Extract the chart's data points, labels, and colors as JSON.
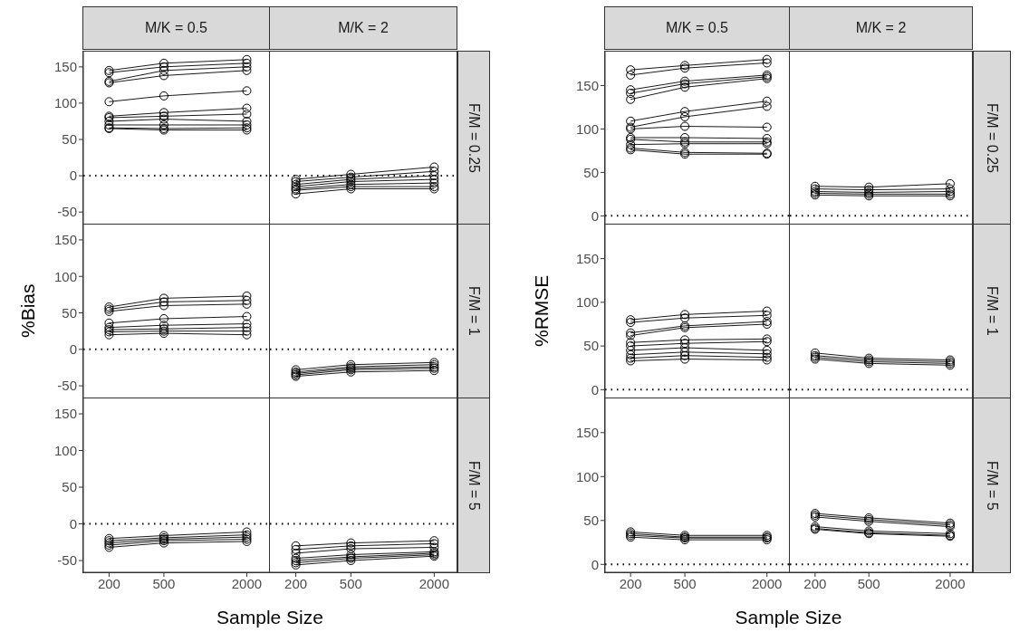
{
  "chart_data": [
    {
      "type": "line",
      "title": "M/K = 0.5",
      "x": [
        200,
        500,
        2000
      ],
      "log": "x",
      "xlim": [
        130,
        2900
      ],
      "xticks": [
        200,
        500,
        2000
      ],
      "ylim": [
        -66,
        171
      ],
      "yticks": [
        -50,
        0,
        50,
        100,
        150
      ],
      "tick_labels": "y",
      "marker": "circle",
      "line_style": "solid",
      "grid": false,
      "ref_lines": [
        {
          "axis": "y",
          "value": 0,
          "line_style": "dotted",
          "color": "#000000"
        }
      ],
      "series": [
        {
          "color": "#000000",
          "values": [
            145,
            155,
            160
          ]
        },
        {
          "color": "#000000",
          "values": [
            142,
            150,
            155
          ]
        },
        {
          "color": "#000000",
          "values": [
            130,
            145,
            150
          ]
        },
        {
          "color": "#000000",
          "values": [
            128,
            138,
            145
          ]
        },
        {
          "color": "#000000",
          "values": [
            102,
            110,
            117
          ]
        },
        {
          "color": "#000000",
          "values": [
            82,
            87,
            93
          ]
        },
        {
          "color": "#000000",
          "values": [
            80,
            82,
            85
          ]
        },
        {
          "color": "#000000",
          "values": [
            75,
            78,
            75
          ]
        },
        {
          "color": "#000000",
          "values": [
            70,
            70,
            70
          ]
        },
        {
          "color": "#000000",
          "values": [
            66,
            65,
            66
          ]
        },
        {
          "color": "#000000",
          "values": [
            65,
            63,
            63
          ]
        }
      ]
    },
    {
      "type": "line",
      "title": "M/K = 2",
      "y2label": "F/M = 0.25",
      "x": [
        200,
        500,
        2000
      ],
      "log": "x",
      "xlim": [
        130,
        2900
      ],
      "xticks": [
        200,
        500,
        2000
      ],
      "ylim": [
        -66,
        171
      ],
      "yticks": [
        -50,
        0,
        50,
        100,
        150
      ],
      "tick_labels": false,
      "marker": "circle",
      "line_style": "solid",
      "grid": false,
      "ref_lines": [
        {
          "axis": "y",
          "value": 0,
          "line_style": "dotted",
          "color": "#000000"
        }
      ],
      "series": [
        {
          "color": "#000000",
          "values": [
            -5,
            2,
            12
          ]
        },
        {
          "color": "#000000",
          "values": [
            -8,
            -2,
            6
          ]
        },
        {
          "color": "#000000",
          "values": [
            -12,
            -5,
            0
          ]
        },
        {
          "color": "#000000",
          "values": [
            -15,
            -8,
            -5
          ]
        },
        {
          "color": "#000000",
          "values": [
            -18,
            -12,
            -10
          ]
        },
        {
          "color": "#000000",
          "values": [
            -20,
            -15,
            -15
          ]
        },
        {
          "color": "#000000",
          "values": [
            -25,
            -18,
            -18
          ]
        }
      ]
    },
    {
      "type": "line",
      "ylabel": "%Bias",
      "x": [
        200,
        500,
        2000
      ],
      "log": "x",
      "xlim": [
        130,
        2900
      ],
      "xticks": [
        200,
        500,
        2000
      ],
      "ylim": [
        -66,
        171
      ],
      "yticks": [
        -50,
        0,
        50,
        100,
        150
      ],
      "tick_labels": "y",
      "marker": "circle",
      "line_style": "solid",
      "grid": false,
      "ref_lines": [
        {
          "axis": "y",
          "value": 0,
          "line_style": "dotted",
          "color": "#000000"
        }
      ],
      "series": [
        {
          "color": "#000000",
          "values": [
            58,
            70,
            73
          ]
        },
        {
          "color": "#000000",
          "values": [
            55,
            65,
            67
          ]
        },
        {
          "color": "#000000",
          "values": [
            52,
            60,
            62
          ]
        },
        {
          "color": "#000000",
          "values": [
            36,
            42,
            45
          ]
        },
        {
          "color": "#000000",
          "values": [
            30,
            33,
            35
          ]
        },
        {
          "color": "#000000",
          "values": [
            27,
            28,
            30
          ]
        },
        {
          "color": "#000000",
          "values": [
            24,
            25,
            25
          ]
        },
        {
          "color": "#000000",
          "values": [
            20,
            22,
            20
          ]
        }
      ]
    },
    {
      "type": "line",
      "y2label": "F/M = 1",
      "x": [
        200,
        500,
        2000
      ],
      "log": "x",
      "xlim": [
        130,
        2900
      ],
      "xticks": [
        200,
        500,
        2000
      ],
      "ylim": [
        -66,
        171
      ],
      "yticks": [
        -50,
        0,
        50,
        100,
        150
      ],
      "tick_labels": false,
      "marker": "circle",
      "line_style": "solid",
      "grid": false,
      "ref_lines": [
        {
          "axis": "y",
          "value": 0,
          "line_style": "dotted",
          "color": "#000000"
        }
      ],
      "series": [
        {
          "color": "#000000",
          "values": [
            -28,
            -21,
            -18
          ]
        },
        {
          "color": "#000000",
          "values": [
            -31,
            -24,
            -21
          ]
        },
        {
          "color": "#000000",
          "values": [
            -33,
            -26,
            -24
          ]
        },
        {
          "color": "#000000",
          "values": [
            -35,
            -28,
            -26
          ]
        },
        {
          "color": "#000000",
          "values": [
            -37,
            -31,
            -29
          ]
        }
      ]
    },
    {
      "type": "line",
      "xlabel": "Sample Size",
      "x": [
        200,
        500,
        2000
      ],
      "log": "x",
      "xlim": [
        130,
        2900
      ],
      "xticks": [
        200,
        500,
        2000
      ],
      "ylim": [
        -66,
        171
      ],
      "yticks": [
        -50,
        0,
        50,
        100,
        150
      ],
      "marker": "circle",
      "line_style": "solid",
      "grid": false,
      "ref_lines": [
        {
          "axis": "y",
          "value": 0,
          "line_style": "dotted",
          "color": "#000000"
        }
      ],
      "series": [
        {
          "color": "#000000",
          "values": [
            -20,
            -16,
            -11
          ]
        },
        {
          "color": "#000000",
          "values": [
            -23,
            -19,
            -15
          ]
        },
        {
          "color": "#000000",
          "values": [
            -26,
            -21,
            -18
          ]
        },
        {
          "color": "#000000",
          "values": [
            -29,
            -23,
            -21
          ]
        },
        {
          "color": "#000000",
          "values": [
            -32,
            -26,
            -24
          ]
        }
      ]
    },
    {
      "type": "line",
      "y2label": "F/M = 5",
      "x": [
        200,
        500,
        2000
      ],
      "log": "x",
      "xlim": [
        130,
        2900
      ],
      "xticks": [
        200,
        500,
        2000
      ],
      "ylim": [
        -66,
        171
      ],
      "yticks": [
        -50,
        0,
        50,
        100,
        150
      ],
      "tick_labels": "x",
      "marker": "circle",
      "line_style": "solid",
      "grid": false,
      "ref_lines": [
        {
          "axis": "y",
          "value": 0,
          "line_style": "dotted",
          "color": "#000000"
        }
      ],
      "series": [
        {
          "color": "#000000",
          "values": [
            -30,
            -26,
            -23
          ]
        },
        {
          "color": "#000000",
          "values": [
            -35,
            -30,
            -27
          ]
        },
        {
          "color": "#000000",
          "values": [
            -40,
            -34,
            -32
          ]
        },
        {
          "color": "#000000",
          "values": [
            -47,
            -42,
            -38
          ]
        },
        {
          "color": "#000000",
          "values": [
            -50,
            -45,
            -40
          ]
        },
        {
          "color": "#000000",
          "values": [
            -53,
            -47,
            -42
          ]
        },
        {
          "color": "#000000",
          "values": [
            -56,
            -50,
            -44
          ]
        }
      ]
    },
    {
      "type": "line",
      "title": "M/K = 0.5",
      "x": [
        200,
        500,
        2000
      ],
      "log": "x",
      "xlim": [
        130,
        2900
      ],
      "xticks": [
        200,
        500,
        2000
      ],
      "ylim": [
        -9,
        189
      ],
      "yticks": [
        0,
        50,
        100,
        150
      ],
      "tick_labels": "y",
      "marker": "circle",
      "line_style": "solid",
      "grid": false,
      "ref_lines": [
        {
          "axis": "y",
          "value": 0,
          "line_style": "dotted",
          "color": "#000000"
        }
      ],
      "series": [
        {
          "color": "#000000",
          "values": [
            168,
            173,
            180
          ]
        },
        {
          "color": "#000000",
          "values": [
            162,
            170,
            176
          ]
        },
        {
          "color": "#000000",
          "values": [
            145,
            155,
            162
          ]
        },
        {
          "color": "#000000",
          "values": [
            141,
            152,
            160
          ]
        },
        {
          "color": "#000000",
          "values": [
            134,
            148,
            158
          ]
        },
        {
          "color": "#000000",
          "values": [
            109,
            120,
            132
          ]
        },
        {
          "color": "#000000",
          "values": [
            102,
            114,
            126
          ]
        },
        {
          "color": "#000000",
          "values": [
            100,
            103,
            102
          ]
        },
        {
          "color": "#000000",
          "values": [
            90,
            90,
            89
          ]
        },
        {
          "color": "#000000",
          "values": [
            88,
            85,
            85
          ]
        },
        {
          "color": "#000000",
          "values": [
            82,
            83,
            83
          ]
        },
        {
          "color": "#000000",
          "values": [
            78,
            73,
            72
          ]
        },
        {
          "color": "#000000",
          "values": [
            76,
            71,
            71
          ]
        }
      ]
    },
    {
      "type": "line",
      "title": "M/K = 2",
      "y2label": "F/M = 0.25",
      "x": [
        200,
        500,
        2000
      ],
      "log": "x",
      "xlim": [
        130,
        2900
      ],
      "xticks": [
        200,
        500,
        2000
      ],
      "ylim": [
        -9,
        189
      ],
      "yticks": [
        0,
        50,
        100,
        150
      ],
      "tick_labels": false,
      "marker": "circle",
      "line_style": "solid",
      "grid": false,
      "ref_lines": [
        {
          "axis": "y",
          "value": 0,
          "line_style": "dotted",
          "color": "#000000"
        }
      ],
      "series": [
        {
          "color": "#000000",
          "values": [
            34,
            33,
            37
          ]
        },
        {
          "color": "#000000",
          "values": [
            31,
            30,
            31
          ]
        },
        {
          "color": "#000000",
          "values": [
            28,
            27,
            28
          ]
        },
        {
          "color": "#000000",
          "values": [
            26,
            25,
            25
          ]
        },
        {
          "color": "#000000",
          "values": [
            24,
            23,
            23
          ]
        }
      ]
    },
    {
      "type": "line",
      "ylabel": "%RMSE",
      "x": [
        200,
        500,
        2000
      ],
      "log": "x",
      "xlim": [
        130,
        2900
      ],
      "xticks": [
        200,
        500,
        2000
      ],
      "ylim": [
        -9,
        189
      ],
      "yticks": [
        0,
        50,
        100,
        150
      ],
      "tick_labels": "y",
      "marker": "circle",
      "line_style": "solid",
      "grid": false,
      "ref_lines": [
        {
          "axis": "y",
          "value": 0,
          "line_style": "dotted",
          "color": "#000000"
        }
      ],
      "series": [
        {
          "color": "#000000",
          "values": [
            80,
            86,
            90
          ]
        },
        {
          "color": "#000000",
          "values": [
            77,
            82,
            85
          ]
        },
        {
          "color": "#000000",
          "values": [
            65,
            73,
            78
          ]
        },
        {
          "color": "#000000",
          "values": [
            62,
            71,
            75
          ]
        },
        {
          "color": "#000000",
          "values": [
            54,
            57,
            58
          ]
        },
        {
          "color": "#000000",
          "values": [
            50,
            53,
            55
          ]
        },
        {
          "color": "#000000",
          "values": [
            45,
            48,
            45
          ]
        },
        {
          "color": "#000000",
          "values": [
            40,
            43,
            41
          ]
        },
        {
          "color": "#000000",
          "values": [
            36,
            39,
            37
          ]
        },
        {
          "color": "#000000",
          "values": [
            33,
            35,
            34
          ]
        }
      ]
    },
    {
      "type": "line",
      "y2label": "F/M = 1",
      "x": [
        200,
        500,
        2000
      ],
      "log": "x",
      "xlim": [
        130,
        2900
      ],
      "xticks": [
        200,
        500,
        2000
      ],
      "ylim": [
        -9,
        189
      ],
      "yticks": [
        0,
        50,
        100,
        150
      ],
      "tick_labels": false,
      "marker": "circle",
      "line_style": "solid",
      "grid": false,
      "ref_lines": [
        {
          "axis": "y",
          "value": 0,
          "line_style": "dotted",
          "color": "#000000"
        }
      ],
      "series": [
        {
          "color": "#000000",
          "values": [
            42,
            36,
            34
          ]
        },
        {
          "color": "#000000",
          "values": [
            39,
            34,
            32
          ]
        },
        {
          "color": "#000000",
          "values": [
            37,
            32,
            30
          ]
        },
        {
          "color": "#000000",
          "values": [
            35,
            30,
            28
          ]
        }
      ]
    },
    {
      "type": "line",
      "xlabel": "Sample Size",
      "x": [
        200,
        500,
        2000
      ],
      "log": "x",
      "xlim": [
        130,
        2900
      ],
      "xticks": [
        200,
        500,
        2000
      ],
      "ylim": [
        -9,
        189
      ],
      "yticks": [
        0,
        50,
        100,
        150
      ],
      "marker": "circle",
      "line_style": "solid",
      "grid": false,
      "ref_lines": [
        {
          "axis": "y",
          "value": 0,
          "line_style": "dotted",
          "color": "#000000"
        }
      ],
      "series": [
        {
          "color": "#000000",
          "values": [
            37,
            33,
            33
          ]
        },
        {
          "color": "#000000",
          "values": [
            35,
            31,
            31
          ]
        },
        {
          "color": "#000000",
          "values": [
            33,
            30,
            30
          ]
        },
        {
          "color": "#000000",
          "values": [
            31,
            28,
            28
          ]
        }
      ]
    },
    {
      "type": "line",
      "y2label": "F/M = 5",
      "x": [
        200,
        500,
        2000
      ],
      "log": "x",
      "xlim": [
        130,
        2900
      ],
      "xticks": [
        200,
        500,
        2000
      ],
      "ylim": [
        -9,
        189
      ],
      "yticks": [
        0,
        50,
        100,
        150
      ],
      "tick_labels": "x",
      "marker": "circle",
      "line_style": "solid",
      "grid": false,
      "ref_lines": [
        {
          "axis": "y",
          "value": 0,
          "line_style": "dotted",
          "color": "#000000"
        }
      ],
      "series": [
        {
          "color": "#000000",
          "values": [
            58,
            53,
            47
          ]
        },
        {
          "color": "#000000",
          "values": [
            56,
            51,
            45
          ]
        },
        {
          "color": "#000000",
          "values": [
            54,
            49,
            43
          ]
        },
        {
          "color": "#000000",
          "values": [
            43,
            38,
            35
          ]
        },
        {
          "color": "#000000",
          "values": [
            41,
            36,
            33
          ]
        },
        {
          "color": "#000000",
          "values": [
            40,
            35,
            32
          ]
        }
      ]
    }
  ]
}
